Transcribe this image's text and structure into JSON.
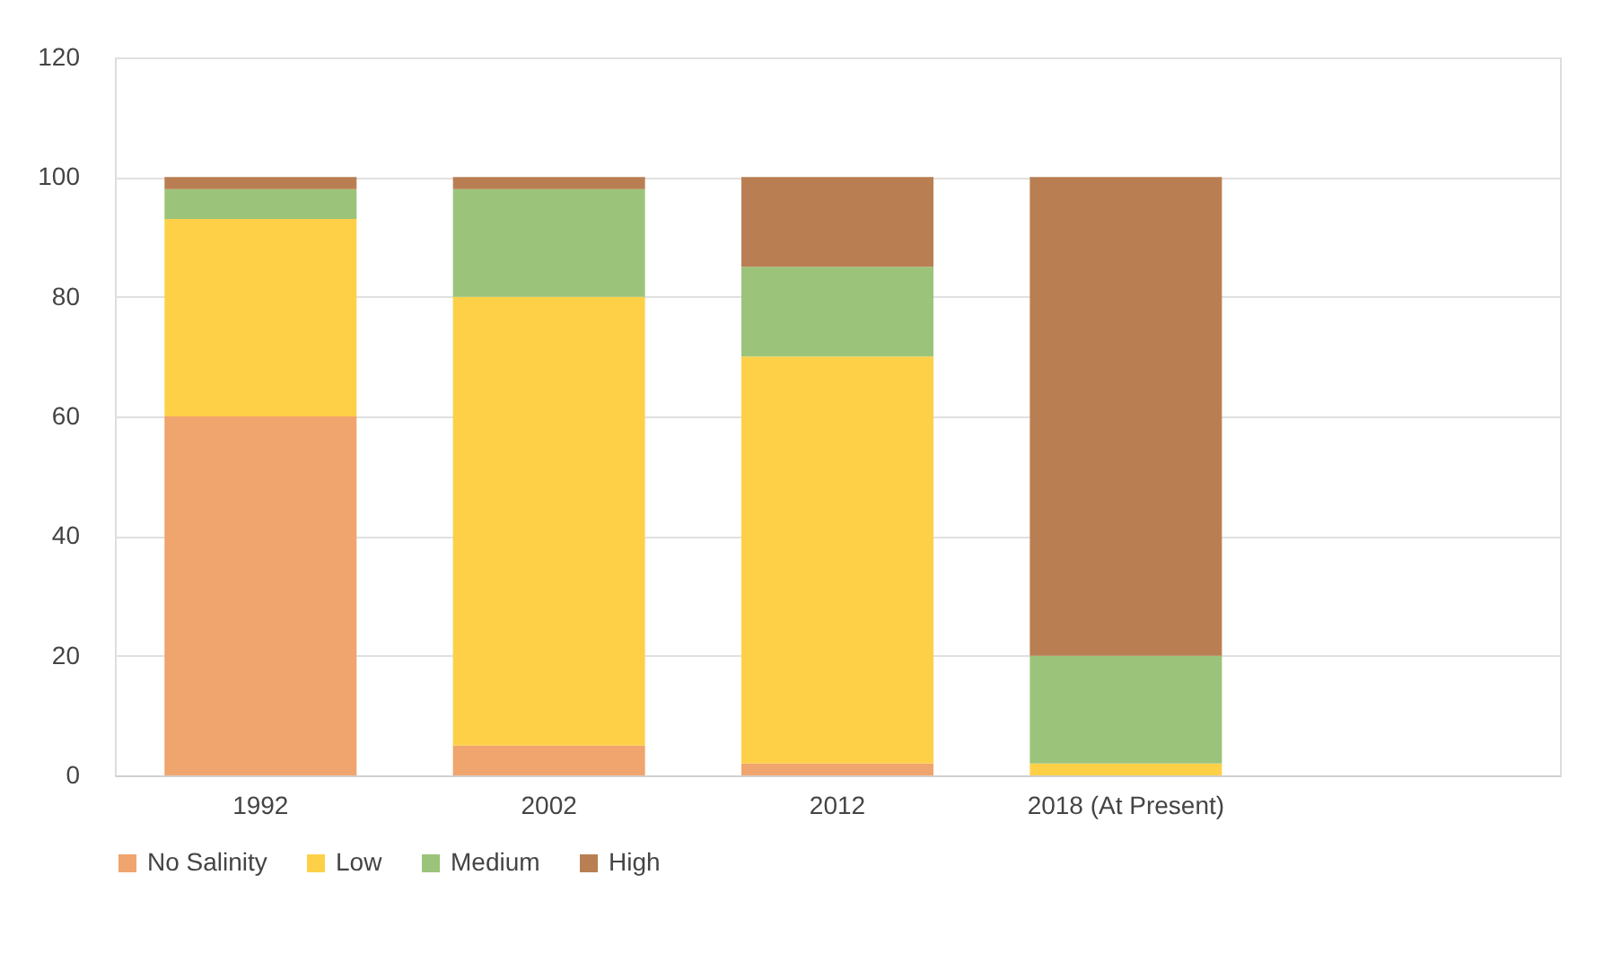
{
  "chart_data": {
    "type": "bar",
    "stacked": true,
    "categories": [
      "1992",
      "2002",
      "2012",
      "2018 (At Present)",
      null
    ],
    "series": [
      {
        "name": "No Salinity",
        "color": "#f0a46e",
        "values": [
          60,
          5,
          2,
          0,
          null
        ]
      },
      {
        "name": "Low",
        "color": "#fdd048",
        "values": [
          33,
          75,
          68,
          2,
          null
        ]
      },
      {
        "name": "Medium",
        "color": "#9bc47a",
        "values": [
          5,
          18,
          15,
          18,
          null
        ]
      },
      {
        "name": "High",
        "color": "#b97f52",
        "values": [
          2,
          2,
          15,
          80,
          null
        ]
      }
    ],
    "ylim": [
      0,
      120
    ],
    "yticks": [
      0,
      20,
      40,
      60,
      80,
      100,
      120
    ],
    "grid": "y",
    "legend": "bottom"
  }
}
